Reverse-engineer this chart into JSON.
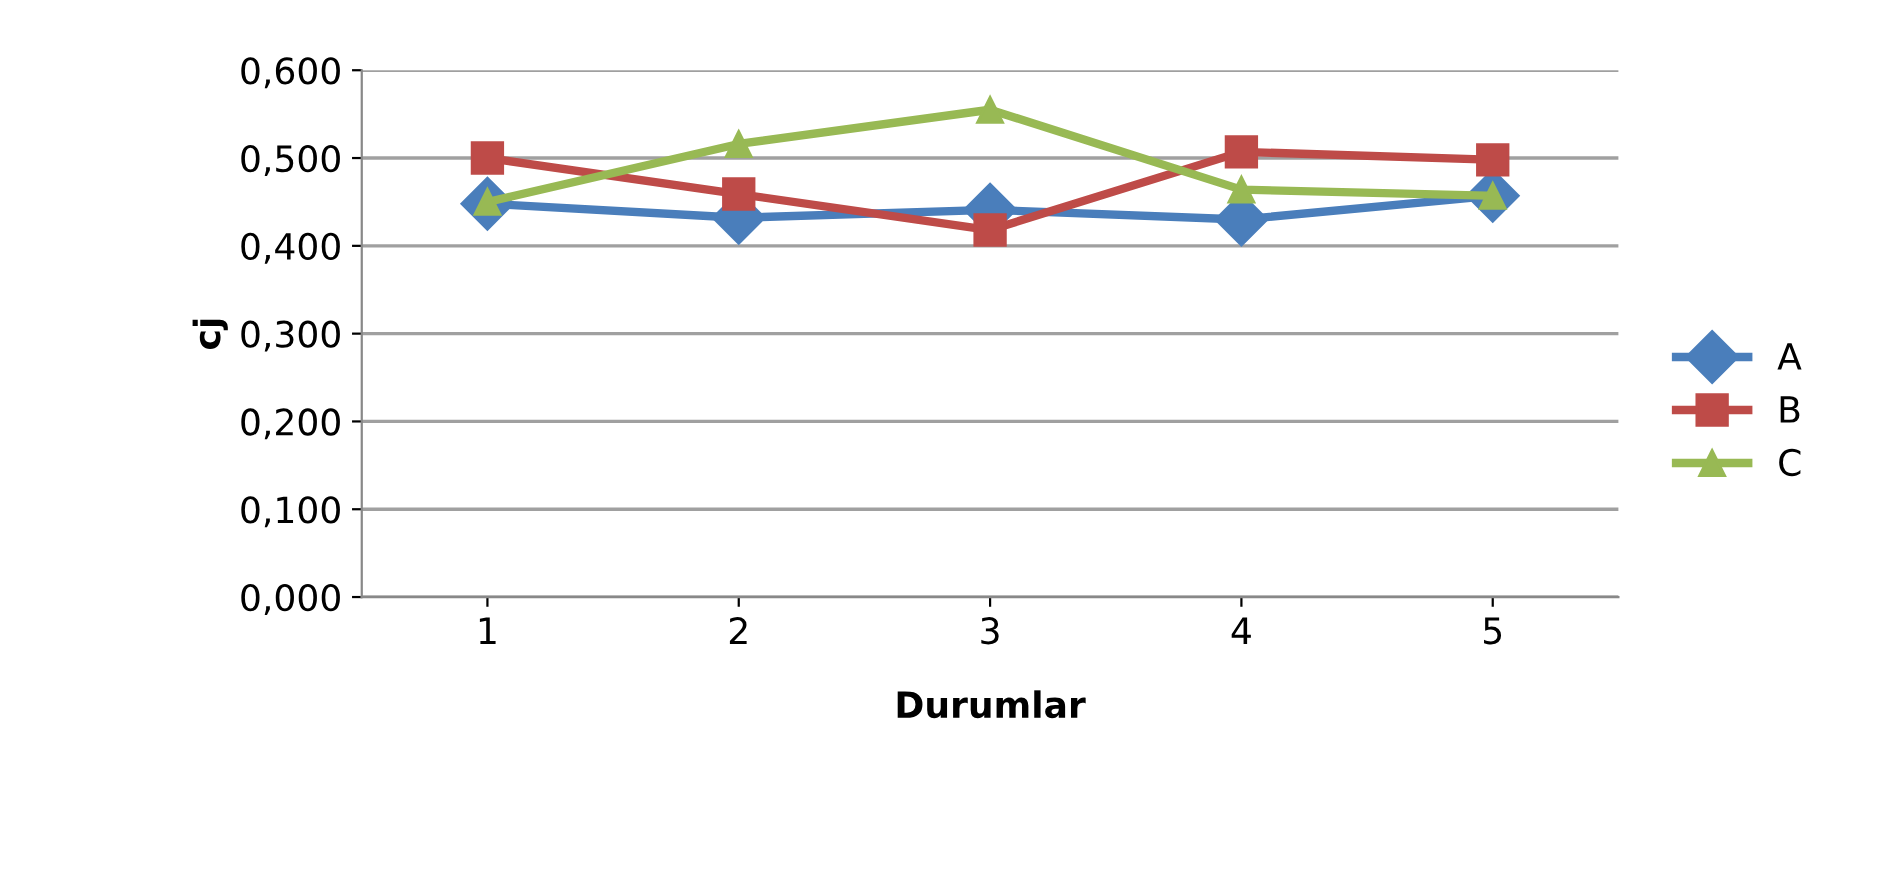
{
  "chart_data": {
    "type": "line",
    "xlabel": "Durumlar",
    "ylabel": "cj",
    "categories": [
      "1",
      "2",
      "3",
      "4",
      "5"
    ],
    "series": [
      {
        "name": "A",
        "color": "#4a7ebb",
        "marker": "diamond",
        "values": [
          0.448,
          0.432,
          0.441,
          0.43,
          0.457
        ]
      },
      {
        "name": "B",
        "color": "#be4b48",
        "marker": "square",
        "values": [
          0.5,
          0.459,
          0.418,
          0.507,
          0.498
        ]
      },
      {
        "name": "C",
        "color": "#98b954",
        "marker": "triangle",
        "values": [
          0.45,
          0.516,
          0.555,
          0.464,
          0.457
        ]
      }
    ],
    "ylim": [
      0,
      0.6
    ],
    "yticks": [
      {
        "value": 0,
        "label": "0,000"
      },
      {
        "value": 0.1,
        "label": "0,100"
      },
      {
        "value": 0.2,
        "label": "0,200"
      },
      {
        "value": 0.3,
        "label": "0,300"
      },
      {
        "value": 0.4,
        "label": "0,400"
      },
      {
        "value": 0.5,
        "label": "0,500"
      },
      {
        "value": 0.6,
        "label": "0,600"
      }
    ],
    "grid": "y",
    "legend": "right",
    "line_style": "solid"
  }
}
